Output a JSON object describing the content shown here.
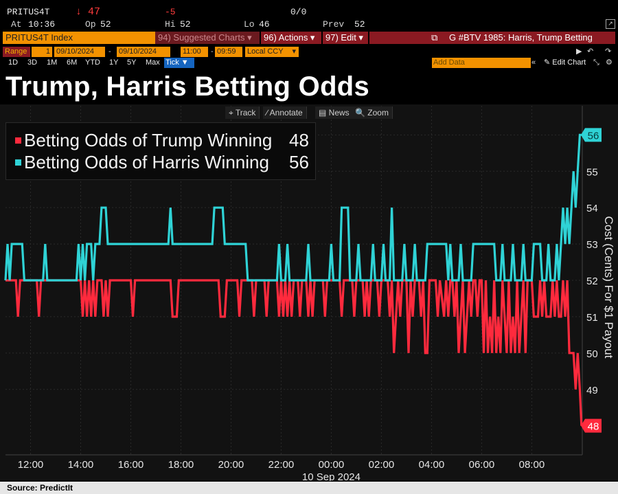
{
  "quote": {
    "ticker": "PRITUS4T",
    "last": "↓ 47",
    "change": "-5",
    "bid_ask": "0/0",
    "at_label": "At",
    "time": "10:36",
    "op_label": "Op",
    "op": "52",
    "hi_label": "Hi",
    "hi": "52",
    "lo_label": "Lo",
    "lo": "46",
    "prev_label": "Prev",
    "prev": "52"
  },
  "command_bar": {
    "security": "PRITUS4T Index",
    "suggested": "94) Suggested Charts ▾",
    "actions": "96) Actions ▾",
    "edit": "97) Edit ▾",
    "chart_title": "G #BTV 1985: Harris, Trump Betting"
  },
  "range_bar": {
    "range_label": "Range",
    "range_value": "1",
    "start_date": "09/10/2024",
    "end_date": "09/10/2024",
    "start_time": "11:00",
    "end_time": "09:59",
    "currency": "Local CCY",
    "add_data": "Add Data",
    "edit_chart": "✎ Edit Chart"
  },
  "timeframes": [
    "1D",
    "3D",
    "1M",
    "6M",
    "YTD",
    "1Y",
    "5Y",
    "Max"
  ],
  "tick_button": "Tick ▼",
  "headline": "Trump, Harris Betting Odds",
  "controls": [
    "⌖ Track",
    "∕ Annotate",
    "▤ News",
    "🔍 Zoom"
  ],
  "source": "Source: PredictIt",
  "chart_data": {
    "type": "line",
    "title": "Trump, Harris Betting Odds",
    "ylabel": "Cost (Cents) For $1 Payout",
    "ylim": [
      47.2,
      56.8
    ],
    "yticks": [
      49,
      50,
      51,
      52,
      53,
      54,
      55,
      56
    ],
    "xticks": [
      "12:00",
      "14:00",
      "16:00",
      "18:00",
      "20:00",
      "22:00",
      "00:00",
      "02:00",
      "04:00",
      "06:00",
      "08:00"
    ],
    "x_date_label": "10 Sep 2024",
    "x_start": "11:00",
    "x_end": "09:59",
    "colors": {
      "trump": "#ff2a3d",
      "harris": "#2fd3d6"
    },
    "series": [
      {
        "name": "Betting Odds of Trump Winning",
        "last_value": "48",
        "points": [
          [
            "11:00",
            52
          ],
          [
            "11:25",
            52
          ],
          [
            "11:30",
            51
          ],
          [
            "11:35",
            52
          ],
          [
            "12:15",
            52
          ],
          [
            "12:20",
            51
          ],
          [
            "12:25",
            52
          ],
          [
            "14:00",
            52
          ],
          [
            "14:05",
            51
          ],
          [
            "14:10",
            52
          ],
          [
            "14:15",
            51
          ],
          [
            "14:20",
            52
          ],
          [
            "14:25",
            51
          ],
          [
            "14:30",
            52
          ],
          [
            "14:35",
            51
          ],
          [
            "14:40",
            52
          ],
          [
            "14:50",
            52
          ],
          [
            "14:55",
            51
          ],
          [
            "15:00",
            52
          ],
          [
            "15:05",
            51
          ],
          [
            "15:10",
            52
          ],
          [
            "16:00",
            52
          ],
          [
            "16:05",
            51
          ],
          [
            "16:10",
            52
          ],
          [
            "17:35",
            52
          ],
          [
            "17:40",
            51
          ],
          [
            "17:50",
            51
          ],
          [
            "17:55",
            52
          ],
          [
            "19:30",
            52
          ],
          [
            "19:35",
            51
          ],
          [
            "19:45",
            51
          ],
          [
            "19:50",
            52
          ],
          [
            "20:15",
            52
          ],
          [
            "20:20",
            51
          ],
          [
            "20:25",
            52
          ],
          [
            "20:50",
            52
          ],
          [
            "20:55",
            51
          ],
          [
            "21:00",
            52
          ],
          [
            "21:20",
            52
          ],
          [
            "21:25",
            51
          ],
          [
            "21:30",
            52
          ],
          [
            "21:50",
            52
          ],
          [
            "21:55",
            51
          ],
          [
            "22:00",
            52
          ],
          [
            "22:05",
            51
          ],
          [
            "22:10",
            52
          ],
          [
            "22:15",
            51
          ],
          [
            "22:20",
            52
          ],
          [
            "22:25",
            51
          ],
          [
            "22:30",
            52
          ],
          [
            "22:40",
            52
          ],
          [
            "22:45",
            51
          ],
          [
            "22:50",
            52
          ],
          [
            "23:00",
            52
          ],
          [
            "23:05",
            51
          ],
          [
            "23:10",
            52
          ],
          [
            "23:15",
            51
          ],
          [
            "23:20",
            52
          ],
          [
            "23:40",
            52
          ],
          [
            "23:45",
            51
          ],
          [
            "23:50",
            52
          ],
          [
            "00:20",
            52
          ],
          [
            "00:25",
            51
          ],
          [
            "00:30",
            52
          ],
          [
            "00:50",
            52
          ],
          [
            "00:55",
            51
          ],
          [
            "01:00",
            52
          ],
          [
            "01:15",
            52
          ],
          [
            "01:20",
            51
          ],
          [
            "01:25",
            52
          ],
          [
            "01:30",
            51
          ],
          [
            "01:35",
            52
          ],
          [
            "01:50",
            52
          ],
          [
            "01:55",
            51
          ],
          [
            "02:00",
            52
          ],
          [
            "02:15",
            52
          ],
          [
            "02:20",
            51
          ],
          [
            "02:25",
            52
          ],
          [
            "02:30",
            50
          ],
          [
            "02:35",
            51
          ],
          [
            "02:40",
            52
          ],
          [
            "02:45",
            51
          ],
          [
            "02:50",
            52
          ],
          [
            "03:00",
            52
          ],
          [
            "03:05",
            50
          ],
          [
            "03:10",
            52
          ],
          [
            "03:15",
            51
          ],
          [
            "03:20",
            52
          ],
          [
            "03:30",
            52
          ],
          [
            "03:35",
            51
          ],
          [
            "03:40",
            52
          ],
          [
            "03:45",
            50
          ],
          [
            "03:50",
            50
          ],
          [
            "03:55",
            52
          ],
          [
            "04:10",
            52
          ],
          [
            "04:15",
            51
          ],
          [
            "04:20",
            52
          ],
          [
            "04:30",
            51
          ],
          [
            "04:35",
            52
          ],
          [
            "04:40",
            51
          ],
          [
            "04:45",
            52
          ],
          [
            "04:50",
            52
          ],
          [
            "04:55",
            51
          ],
          [
            "05:00",
            52
          ],
          [
            "05:05",
            50
          ],
          [
            "05:10",
            51
          ],
          [
            "05:15",
            52
          ],
          [
            "05:20",
            50
          ],
          [
            "05:25",
            51
          ],
          [
            "05:30",
            52
          ],
          [
            "05:35",
            51
          ],
          [
            "05:40",
            52
          ],
          [
            "05:45",
            52
          ],
          [
            "05:50",
            51
          ],
          [
            "05:55",
            52
          ],
          [
            "06:00",
            52
          ],
          [
            "06:05",
            50
          ],
          [
            "06:10",
            52
          ],
          [
            "06:15",
            50
          ],
          [
            "06:20",
            51
          ],
          [
            "06:25",
            50
          ],
          [
            "06:30",
            52
          ],
          [
            "06:35",
            50
          ],
          [
            "06:40",
            51
          ],
          [
            "06:45",
            50
          ],
          [
            "06:50",
            52
          ],
          [
            "06:55",
            51
          ],
          [
            "07:00",
            50
          ],
          [
            "07:05",
            52
          ],
          [
            "07:10",
            50
          ],
          [
            "07:15",
            51
          ],
          [
            "07:20",
            50
          ],
          [
            "07:25",
            52
          ],
          [
            "07:30",
            50
          ],
          [
            "07:35",
            51
          ],
          [
            "07:40",
            52
          ],
          [
            "07:45",
            50
          ],
          [
            "07:50",
            52
          ],
          [
            "08:00",
            52
          ],
          [
            "08:05",
            51
          ],
          [
            "08:15",
            51
          ],
          [
            "08:20",
            52
          ],
          [
            "08:25",
            51
          ],
          [
            "08:30",
            52
          ],
          [
            "08:35",
            51
          ],
          [
            "08:45",
            51
          ],
          [
            "08:50",
            52
          ],
          [
            "08:55",
            51
          ],
          [
            "09:00",
            52
          ],
          [
            "09:05",
            51
          ],
          [
            "09:10",
            51
          ],
          [
            "09:15",
            52
          ],
          [
            "09:20",
            51
          ],
          [
            "09:25",
            52
          ],
          [
            "09:30",
            50
          ],
          [
            "09:40",
            50
          ],
          [
            "09:45",
            49
          ],
          [
            "09:50",
            50
          ],
          [
            "09:55",
            49
          ],
          [
            "09:59",
            48
          ]
        ]
      },
      {
        "name": "Betting Odds of Harris Winning",
        "last_value": "56",
        "points": [
          [
            "11:00",
            52
          ],
          [
            "11:05",
            53
          ],
          [
            "11:10",
            52
          ],
          [
            "11:15",
            53
          ],
          [
            "11:20",
            53
          ],
          [
            "11:25",
            53
          ],
          [
            "11:40",
            53
          ],
          [
            "11:45",
            52
          ],
          [
            "12:30",
            52
          ],
          [
            "12:35",
            53
          ],
          [
            "12:40",
            52
          ],
          [
            "13:50",
            52
          ],
          [
            "13:55",
            53
          ],
          [
            "14:00",
            52
          ],
          [
            "14:05",
            53
          ],
          [
            "14:10",
            52
          ],
          [
            "14:15",
            53
          ],
          [
            "14:25",
            53
          ],
          [
            "14:30",
            52
          ],
          [
            "14:35",
            53
          ],
          [
            "14:45",
            53
          ],
          [
            "14:50",
            54
          ],
          [
            "15:00",
            54
          ],
          [
            "15:05",
            53
          ],
          [
            "16:00",
            53
          ],
          [
            "17:30",
            53
          ],
          [
            "17:35",
            54
          ],
          [
            "17:40",
            53
          ],
          [
            "19:15",
            53
          ],
          [
            "19:20",
            54
          ],
          [
            "19:40",
            54
          ],
          [
            "19:45",
            53
          ],
          [
            "20:35",
            53
          ],
          [
            "20:40",
            52
          ],
          [
            "21:50",
            52
          ],
          [
            "21:55",
            53
          ],
          [
            "22:00",
            52
          ],
          [
            "22:10",
            52
          ],
          [
            "22:15",
            53
          ],
          [
            "22:20",
            52
          ],
          [
            "23:00",
            52
          ],
          [
            "23:05",
            53
          ],
          [
            "23:10",
            52
          ],
          [
            "23:55",
            52
          ],
          [
            "00:00",
            53
          ],
          [
            "00:05",
            52
          ],
          [
            "00:20",
            52
          ],
          [
            "00:25",
            54
          ],
          [
            "00:40",
            54
          ],
          [
            "00:45",
            52
          ],
          [
            "01:00",
            52
          ],
          [
            "01:05",
            53
          ],
          [
            "01:10",
            52
          ],
          [
            "01:35",
            52
          ],
          [
            "01:40",
            53
          ],
          [
            "01:45",
            52
          ],
          [
            "02:00",
            52
          ],
          [
            "02:05",
            53
          ],
          [
            "02:10",
            52
          ],
          [
            "02:20",
            52
          ],
          [
            "02:25",
            54
          ],
          [
            "02:30",
            52
          ],
          [
            "02:50",
            52
          ],
          [
            "02:55",
            53
          ],
          [
            "03:00",
            52
          ],
          [
            "03:15",
            52
          ],
          [
            "03:20",
            53
          ],
          [
            "03:25",
            52
          ],
          [
            "03:45",
            52
          ],
          [
            "03:50",
            53
          ],
          [
            "04:35",
            53
          ],
          [
            "04:40",
            52
          ],
          [
            "04:45",
            53
          ],
          [
            "04:50",
            52
          ],
          [
            "05:05",
            52
          ],
          [
            "05:10",
            53
          ],
          [
            "05:15",
            52
          ],
          [
            "05:35",
            52
          ],
          [
            "05:40",
            53
          ],
          [
            "06:30",
            53
          ],
          [
            "06:35",
            52
          ],
          [
            "06:45",
            52
          ],
          [
            "06:50",
            53
          ],
          [
            "06:55",
            52
          ],
          [
            "07:10",
            52
          ],
          [
            "07:15",
            53
          ],
          [
            "07:20",
            52
          ],
          [
            "07:35",
            52
          ],
          [
            "07:40",
            53
          ],
          [
            "07:45",
            52
          ],
          [
            "08:00",
            52
          ],
          [
            "08:05",
            53
          ],
          [
            "08:20",
            53
          ],
          [
            "08:25",
            52
          ],
          [
            "08:35",
            52
          ],
          [
            "08:40",
            53
          ],
          [
            "08:45",
            52
          ],
          [
            "08:55",
            52
          ],
          [
            "09:00",
            53
          ],
          [
            "09:05",
            52
          ],
          [
            "09:10",
            53
          ],
          [
            "09:15",
            54
          ],
          [
            "09:20",
            53
          ],
          [
            "09:25",
            54
          ],
          [
            "09:30",
            53
          ],
          [
            "09:35",
            54
          ],
          [
            "09:40",
            55
          ],
          [
            "09:45",
            54
          ],
          [
            "09:50",
            55
          ],
          [
            "09:55",
            56
          ],
          [
            "09:59",
            56
          ]
        ]
      }
    ]
  }
}
